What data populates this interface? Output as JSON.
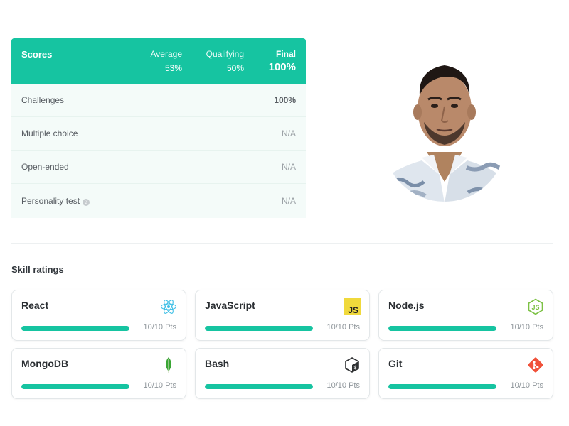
{
  "scores": {
    "title": "Scores",
    "columns": {
      "average": {
        "label": "Average",
        "value": "53%"
      },
      "qualifying": {
        "label": "Qualifying",
        "value": "50%"
      },
      "final": {
        "label": "Final",
        "value": "100%"
      }
    },
    "rows": [
      {
        "label": "Challenges",
        "value": "100%"
      },
      {
        "label": "Multiple choice",
        "value": "N/A"
      },
      {
        "label": "Open-ended",
        "value": "N/A"
      },
      {
        "label": "Personality test",
        "value": "N/A",
        "help_icon": "question-circle-icon"
      }
    ]
  },
  "skills": {
    "title": "Skill ratings",
    "items": [
      {
        "name": "React",
        "points": "10/10 Pts",
        "progress": 1.0,
        "icon": "react-icon"
      },
      {
        "name": "JavaScript",
        "points": "10/10 Pts",
        "progress": 1.0,
        "icon": "javascript-icon"
      },
      {
        "name": "Node.js",
        "points": "10/10 Pts",
        "progress": 1.0,
        "icon": "nodejs-icon"
      },
      {
        "name": "MongoDB",
        "points": "10/10 Pts",
        "progress": 1.0,
        "icon": "mongodb-icon"
      },
      {
        "name": "Bash",
        "points": "10/10 Pts",
        "progress": 1.0,
        "icon": "bash-icon"
      },
      {
        "name": "Git",
        "points": "10/10 Pts",
        "progress": 1.0,
        "icon": "git-icon"
      }
    ]
  },
  "colors": {
    "accent": "#16c4a1",
    "row_background": "#f4fbf9"
  }
}
